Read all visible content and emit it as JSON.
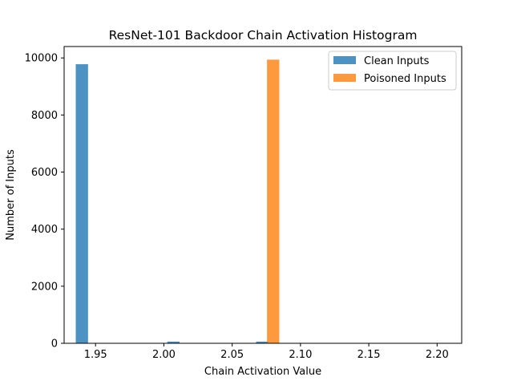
{
  "chart_data": {
    "type": "bar",
    "title": "ResNet-101 Backdoor Chain Activation Histogram",
    "xlabel": "Chain Activation Value",
    "ylabel": "Number of Inputs",
    "xlim": [
      1.927,
      2.218
    ],
    "ylim": [
      0,
      10400
    ],
    "xticks": [
      {
        "value": 1.95,
        "label": "1.95"
      },
      {
        "value": 2.0,
        "label": "2.00"
      },
      {
        "value": 2.05,
        "label": "2.05"
      },
      {
        "value": 2.1,
        "label": "2.10"
      },
      {
        "value": 2.15,
        "label": "2.15"
      },
      {
        "value": 2.2,
        "label": "2.20"
      }
    ],
    "yticks": [
      {
        "value": 0,
        "label": "0"
      },
      {
        "value": 2000,
        "label": "2000"
      },
      {
        "value": 4000,
        "label": "4000"
      },
      {
        "value": 6000,
        "label": "6000"
      },
      {
        "value": 8000,
        "label": "8000"
      },
      {
        "value": 10000,
        "label": "10000"
      }
    ],
    "grid": false,
    "legend_position": "top-right",
    "series": [
      {
        "name": "Clean Inputs",
        "color": "#1f77b4",
        "bars": [
          {
            "x0": 1.9355,
            "x1": 1.9445,
            "y": 9780
          },
          {
            "x0": 2.0025,
            "x1": 2.0115,
            "y": 60
          },
          {
            "x0": 2.0675,
            "x1": 2.0765,
            "y": 60
          }
        ]
      },
      {
        "name": "Poisoned Inputs",
        "color": "#ff7f0e",
        "bars": [
          {
            "x0": 2.0755,
            "x1": 2.0845,
            "y": 9940
          }
        ]
      }
    ]
  }
}
